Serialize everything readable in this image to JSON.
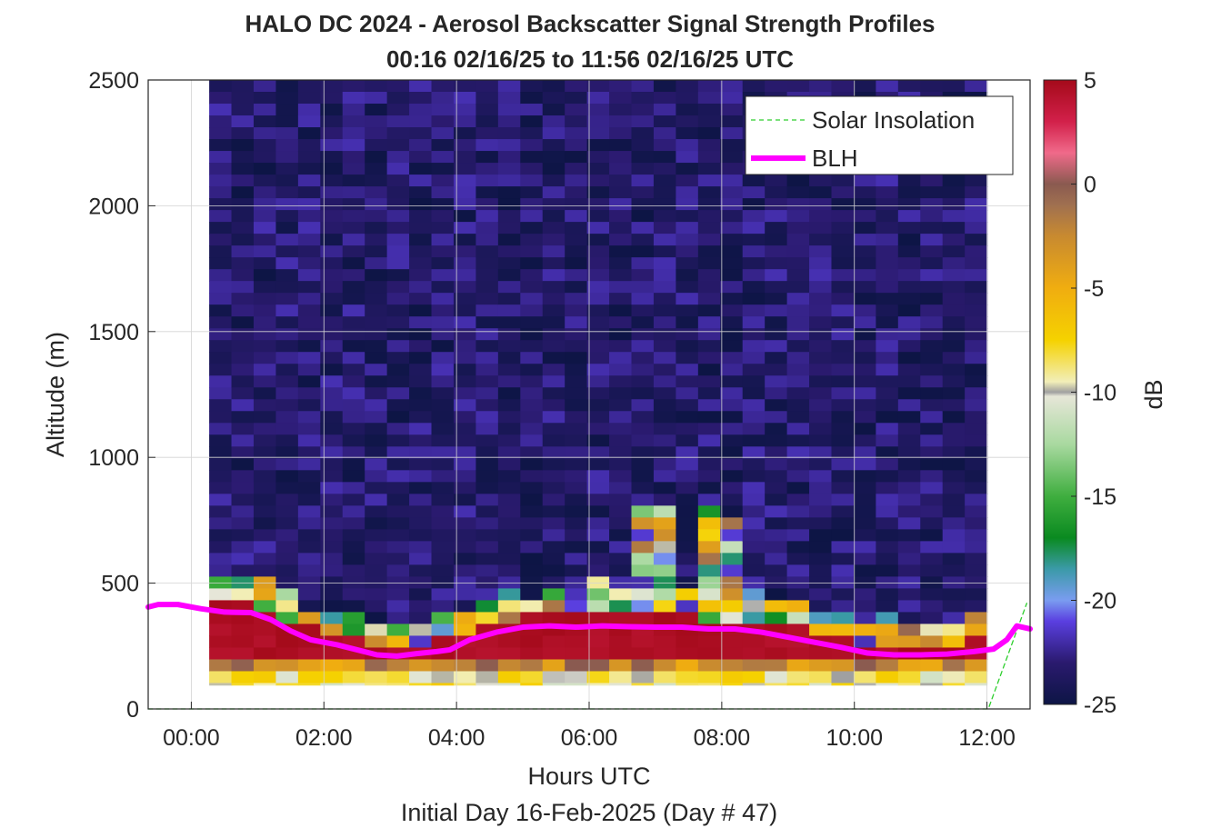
{
  "chart_data": {
    "type": "heatmap",
    "title": "HALO DC 2024 - Aerosol Backscatter Signal Strength Profiles",
    "subtitle": "00:16 02/16/25 to 11:56 02/16/25  UTC",
    "xlabel": "Hours UTC",
    "xlabel2": "Initial Day 16-Feb-2025 (Day # 47)",
    "ylabel": "Altitude (m)",
    "colorbar_label": "dB",
    "xlim_hours": [
      -0.65,
      12.65
    ],
    "ylim": [
      0,
      2500
    ],
    "x_ticks": [
      {
        "hour": 0,
        "label": "00:00"
      },
      {
        "hour": 2,
        "label": "02:00"
      },
      {
        "hour": 4,
        "label": "04:00"
      },
      {
        "hour": 6,
        "label": "06:00"
      },
      {
        "hour": 8,
        "label": "08:00"
      },
      {
        "hour": 10,
        "label": "10:00"
      },
      {
        "hour": 12,
        "label": "12:00"
      }
    ],
    "y_ticks": [
      0,
      500,
      1000,
      1500,
      2000,
      2500
    ],
    "y_tick_labels": [
      "0",
      "500",
      "1000",
      "1500",
      "2000",
      "2500"
    ],
    "color_range": [
      -25,
      5
    ],
    "colorbar_ticks": [
      -25,
      -20,
      -15,
      -10,
      -5,
      0,
      5
    ],
    "colorbar_tick_labels": [
      "-25",
      "-20",
      "-15",
      "-10",
      "-5",
      "0",
      "5"
    ],
    "grid": true,
    "legend_position": "top-right",
    "colormap_stops": [
      {
        "v": -25,
        "c": "#0d1545"
      },
      {
        "v": -23,
        "c": "#2a1a6e"
      },
      {
        "v": -21,
        "c": "#5a3fe0"
      },
      {
        "v": -20,
        "c": "#7a9cf0"
      },
      {
        "v": -18.5,
        "c": "#3b9aa8"
      },
      {
        "v": -17,
        "c": "#0a8a20"
      },
      {
        "v": -15,
        "c": "#3fae3f"
      },
      {
        "v": -12.5,
        "c": "#a9d9a0"
      },
      {
        "v": -10.2,
        "c": "#e6e6d8"
      },
      {
        "v": -10,
        "c": "#a0a0a0"
      },
      {
        "v": -9.5,
        "c": "#f2eeb8"
      },
      {
        "v": -7.5,
        "c": "#f5d200"
      },
      {
        "v": -5,
        "c": "#f0ad10"
      },
      {
        "v": -2.5,
        "c": "#c88a30"
      },
      {
        "v": -1,
        "c": "#a07050"
      },
      {
        "v": 0,
        "c": "#8a5a50"
      },
      {
        "v": 1.5,
        "c": "#f06a8a"
      },
      {
        "v": 3,
        "c": "#d2204a"
      },
      {
        "v": 5,
        "c": "#a40a1a"
      }
    ],
    "heatmap": {
      "x_start_hour": 0.27,
      "x_end_hour": 12.0,
      "n_time": 35,
      "bin_height_m": 47,
      "top_m": 2500
    },
    "series": [
      {
        "name": "Solar Insolation",
        "style": "dashed",
        "color": "#2fcf2f",
        "points": [
          [
            -0.65,
            0
          ],
          [
            12.02,
            0
          ],
          [
            12.6,
            420
          ]
        ]
      },
      {
        "name": "BLH",
        "style": "solid",
        "color": "#ff00ff",
        "points": [
          [
            -0.65,
            405
          ],
          [
            -0.5,
            415
          ],
          [
            -0.2,
            415
          ],
          [
            0.15,
            398
          ],
          [
            0.5,
            385
          ],
          [
            0.9,
            383
          ],
          [
            1.2,
            355
          ],
          [
            1.5,
            310
          ],
          [
            1.8,
            275
          ],
          [
            2.2,
            255
          ],
          [
            2.5,
            235
          ],
          [
            2.8,
            215
          ],
          [
            3.1,
            210
          ],
          [
            3.4,
            220
          ],
          [
            3.7,
            228
          ],
          [
            3.9,
            235
          ],
          [
            4.2,
            275
          ],
          [
            4.6,
            305
          ],
          [
            5.0,
            325
          ],
          [
            5.4,
            330
          ],
          [
            5.8,
            325
          ],
          [
            6.2,
            330
          ],
          [
            6.6,
            327
          ],
          [
            7.0,
            325
          ],
          [
            7.4,
            325
          ],
          [
            7.8,
            318
          ],
          [
            8.2,
            318
          ],
          [
            8.6,
            305
          ],
          [
            9.0,
            285
          ],
          [
            9.4,
            265
          ],
          [
            9.8,
            245
          ],
          [
            10.2,
            222
          ],
          [
            10.6,
            215
          ],
          [
            11.0,
            215
          ],
          [
            11.4,
            218
          ],
          [
            11.8,
            228
          ],
          [
            12.1,
            238
          ],
          [
            12.3,
            275
          ],
          [
            12.45,
            330
          ],
          [
            12.65,
            318
          ]
        ]
      }
    ]
  }
}
